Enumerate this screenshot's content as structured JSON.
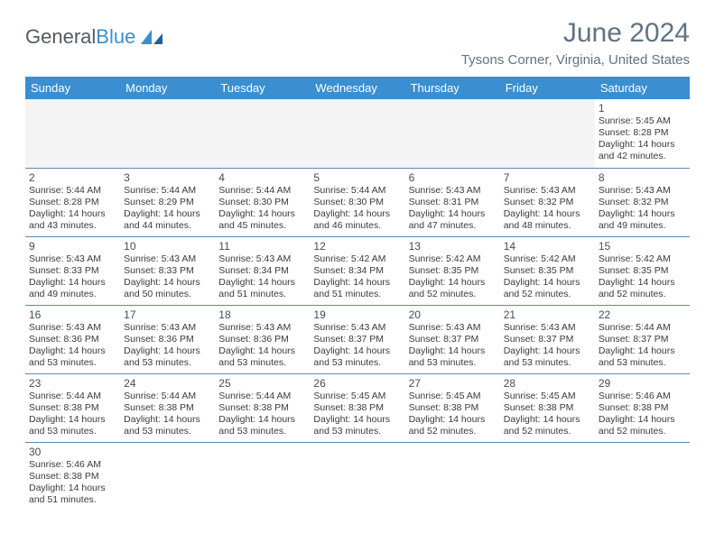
{
  "logo": {
    "part1": "General",
    "part2": "Blue"
  },
  "month_title": "June 2024",
  "location": "Tysons Corner, Virginia, United States",
  "weekdays": [
    "Sunday",
    "Monday",
    "Tuesday",
    "Wednesday",
    "Thursday",
    "Friday",
    "Saturday"
  ],
  "colors": {
    "header_bg": "#3b8ed0",
    "text_muted": "#5f7383",
    "border": "#5f89b0"
  },
  "first_day_index": 6,
  "days": [
    {
      "n": "1",
      "sr": "5:45 AM",
      "ss": "8:28 PM",
      "dl": "14 hours and 42 minutes."
    },
    {
      "n": "2",
      "sr": "5:44 AM",
      "ss": "8:28 PM",
      "dl": "14 hours and 43 minutes."
    },
    {
      "n": "3",
      "sr": "5:44 AM",
      "ss": "8:29 PM",
      "dl": "14 hours and 44 minutes."
    },
    {
      "n": "4",
      "sr": "5:44 AM",
      "ss": "8:30 PM",
      "dl": "14 hours and 45 minutes."
    },
    {
      "n": "5",
      "sr": "5:44 AM",
      "ss": "8:30 PM",
      "dl": "14 hours and 46 minutes."
    },
    {
      "n": "6",
      "sr": "5:43 AM",
      "ss": "8:31 PM",
      "dl": "14 hours and 47 minutes."
    },
    {
      "n": "7",
      "sr": "5:43 AM",
      "ss": "8:32 PM",
      "dl": "14 hours and 48 minutes."
    },
    {
      "n": "8",
      "sr": "5:43 AM",
      "ss": "8:32 PM",
      "dl": "14 hours and 49 minutes."
    },
    {
      "n": "9",
      "sr": "5:43 AM",
      "ss": "8:33 PM",
      "dl": "14 hours and 49 minutes."
    },
    {
      "n": "10",
      "sr": "5:43 AM",
      "ss": "8:33 PM",
      "dl": "14 hours and 50 minutes."
    },
    {
      "n": "11",
      "sr": "5:43 AM",
      "ss": "8:34 PM",
      "dl": "14 hours and 51 minutes."
    },
    {
      "n": "12",
      "sr": "5:42 AM",
      "ss": "8:34 PM",
      "dl": "14 hours and 51 minutes."
    },
    {
      "n": "13",
      "sr": "5:42 AM",
      "ss": "8:35 PM",
      "dl": "14 hours and 52 minutes."
    },
    {
      "n": "14",
      "sr": "5:42 AM",
      "ss": "8:35 PM",
      "dl": "14 hours and 52 minutes."
    },
    {
      "n": "15",
      "sr": "5:42 AM",
      "ss": "8:35 PM",
      "dl": "14 hours and 52 minutes."
    },
    {
      "n": "16",
      "sr": "5:43 AM",
      "ss": "8:36 PM",
      "dl": "14 hours and 53 minutes."
    },
    {
      "n": "17",
      "sr": "5:43 AM",
      "ss": "8:36 PM",
      "dl": "14 hours and 53 minutes."
    },
    {
      "n": "18",
      "sr": "5:43 AM",
      "ss": "8:36 PM",
      "dl": "14 hours and 53 minutes."
    },
    {
      "n": "19",
      "sr": "5:43 AM",
      "ss": "8:37 PM",
      "dl": "14 hours and 53 minutes."
    },
    {
      "n": "20",
      "sr": "5:43 AM",
      "ss": "8:37 PM",
      "dl": "14 hours and 53 minutes."
    },
    {
      "n": "21",
      "sr": "5:43 AM",
      "ss": "8:37 PM",
      "dl": "14 hours and 53 minutes."
    },
    {
      "n": "22",
      "sr": "5:44 AM",
      "ss": "8:37 PM",
      "dl": "14 hours and 53 minutes."
    },
    {
      "n": "23",
      "sr": "5:44 AM",
      "ss": "8:38 PM",
      "dl": "14 hours and 53 minutes."
    },
    {
      "n": "24",
      "sr": "5:44 AM",
      "ss": "8:38 PM",
      "dl": "14 hours and 53 minutes."
    },
    {
      "n": "25",
      "sr": "5:44 AM",
      "ss": "8:38 PM",
      "dl": "14 hours and 53 minutes."
    },
    {
      "n": "26",
      "sr": "5:45 AM",
      "ss": "8:38 PM",
      "dl": "14 hours and 53 minutes."
    },
    {
      "n": "27",
      "sr": "5:45 AM",
      "ss": "8:38 PM",
      "dl": "14 hours and 52 minutes."
    },
    {
      "n": "28",
      "sr": "5:45 AM",
      "ss": "8:38 PM",
      "dl": "14 hours and 52 minutes."
    },
    {
      "n": "29",
      "sr": "5:46 AM",
      "ss": "8:38 PM",
      "dl": "14 hours and 52 minutes."
    },
    {
      "n": "30",
      "sr": "5:46 AM",
      "ss": "8:38 PM",
      "dl": "14 hours and 51 minutes."
    }
  ],
  "labels": {
    "sunrise": "Sunrise: ",
    "sunset": "Sunset: ",
    "daylight": "Daylight: "
  }
}
